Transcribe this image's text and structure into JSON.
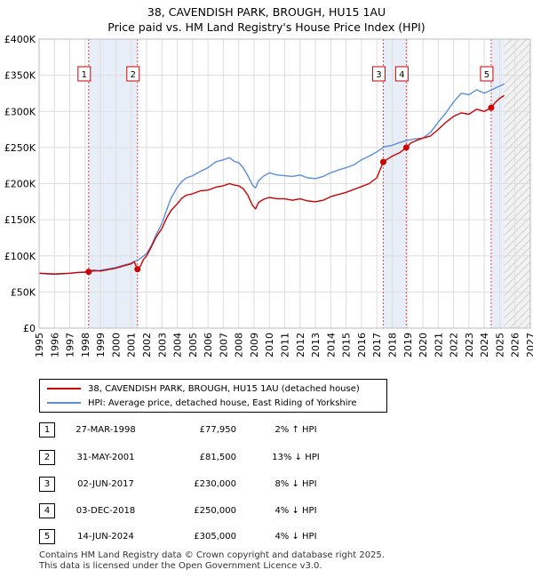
{
  "header": {
    "title_line1": "38, CAVENDISH PARK, BROUGH, HU15 1AU",
    "title_line2": "Price paid vs. HM Land Registry's House Price Index (HPI)"
  },
  "chart_data": {
    "type": "line",
    "xlim": [
      1995,
      2027
    ],
    "ylim": [
      0,
      400000
    ],
    "y_ticks": [
      0,
      50000,
      100000,
      150000,
      200000,
      250000,
      300000,
      350000,
      400000
    ],
    "y_tick_labels": [
      "£0",
      "£50K",
      "£100K",
      "£150K",
      "£200K",
      "£250K",
      "£300K",
      "£350K",
      "£400K"
    ],
    "x_ticks": [
      1995,
      1996,
      1997,
      1998,
      1999,
      2000,
      2001,
      2002,
      2003,
      2004,
      2005,
      2006,
      2007,
      2008,
      2009,
      2010,
      2011,
      2012,
      2013,
      2014,
      2015,
      2016,
      2017,
      2018,
      2019,
      2020,
      2021,
      2022,
      2023,
      2024,
      2025,
      2026,
      2027
    ],
    "x_tick_labels": [
      "1995",
      "1996",
      "1997",
      "1998",
      "1999",
      "2000",
      "2001",
      "2002",
      "2003",
      "2004",
      "2005",
      "2006",
      "2007",
      "2008",
      "2009",
      "2010",
      "2011",
      "2012",
      "2013",
      "2014",
      "2015",
      "2016",
      "2017",
      "2018",
      "2019",
      "2020",
      "2021",
      "2022",
      "2023",
      "2024",
      "2025",
      "2026",
      "2027"
    ],
    "grid": true,
    "forecast_start": 2025.3,
    "shaded_spans": [
      [
        1998.23,
        2001.41
      ],
      [
        2017.42,
        2018.92
      ],
      [
        2024.45,
        2025.3
      ]
    ],
    "series": [
      {
        "name": "38, CAVENDISH PARK, BROUGH, HU15 1AU (detached house)",
        "color": "#cc0000",
        "x": [
          1995.0,
          1995.5,
          1996.0,
          1996.5,
          1997.0,
          1997.5,
          1998.0,
          1998.23,
          1998.5,
          1999.0,
          1999.5,
          2000.0,
          2000.5,
          2001.0,
          2001.2,
          2001.41,
          2001.6,
          2001.8,
          2002.0,
          2002.3,
          2002.6,
          2003.0,
          2003.3,
          2003.6,
          2004.0,
          2004.3,
          2004.6,
          2005.0,
          2005.5,
          2006.0,
          2006.5,
          2007.0,
          2007.4,
          2007.7,
          2008.0,
          2008.3,
          2008.6,
          2008.9,
          2009.1,
          2009.3,
          2009.6,
          2010.0,
          2010.5,
          2011.0,
          2011.5,
          2012.0,
          2012.5,
          2013.0,
          2013.5,
          2014.0,
          2014.5,
          2015.0,
          2015.5,
          2016.0,
          2016.5,
          2017.0,
          2017.42,
          2017.7,
          2018.0,
          2018.5,
          2018.92,
          2019.2,
          2019.6,
          2020.0,
          2020.5,
          2021.0,
          2021.5,
          2022.0,
          2022.5,
          2023.0,
          2023.5,
          2024.0,
          2024.45,
          2024.7,
          2025.0,
          2025.3
        ],
        "values": [
          76000,
          75500,
          75000,
          75500,
          76000,
          77000,
          77500,
          77950,
          80000,
          79000,
          81000,
          83000,
          86000,
          89000,
          92000,
          81500,
          86000,
          95000,
          100000,
          112000,
          125000,
          138000,
          152000,
          163000,
          172000,
          180000,
          184000,
          186000,
          190000,
          191000,
          195000,
          197000,
          200000,
          198000,
          197000,
          193000,
          184000,
          170000,
          165000,
          174000,
          178000,
          181000,
          179000,
          179000,
          177000,
          179000,
          176000,
          175000,
          177000,
          182000,
          185000,
          188000,
          192000,
          196000,
          200000,
          208000,
          230000,
          234000,
          238000,
          243000,
          250000,
          256000,
          260000,
          263000,
          266000,
          275000,
          285000,
          293000,
          298000,
          296000,
          303000,
          300000,
          305000,
          312000,
          318000,
          322000
        ]
      },
      {
        "name": "HPI: Average price, detached house, East Riding of Yorkshire",
        "color": "#5b8fd4",
        "x": [
          1995.0,
          1995.5,
          1996.0,
          1996.5,
          1997.0,
          1997.5,
          1998.0,
          1998.5,
          1999.0,
          1999.5,
          2000.0,
          2000.5,
          2001.0,
          2001.5,
          2002.0,
          2002.3,
          2002.6,
          2003.0,
          2003.3,
          2003.6,
          2004.0,
          2004.3,
          2004.6,
          2005.0,
          2005.5,
          2006.0,
          2006.5,
          2007.0,
          2007.4,
          2007.7,
          2008.0,
          2008.3,
          2008.6,
          2008.9,
          2009.1,
          2009.3,
          2009.6,
          2010.0,
          2010.5,
          2011.0,
          2011.5,
          2012.0,
          2012.5,
          2013.0,
          2013.5,
          2014.0,
          2014.5,
          2015.0,
          2015.5,
          2016.0,
          2016.5,
          2017.0,
          2017.5,
          2018.0,
          2018.5,
          2019.0,
          2019.5,
          2020.0,
          2020.5,
          2021.0,
          2021.5,
          2022.0,
          2022.5,
          2023.0,
          2023.5,
          2024.0,
          2024.5,
          2025.0,
          2025.3
        ],
        "values": [
          76000,
          75000,
          74500,
          75000,
          76000,
          77000,
          77500,
          78500,
          80000,
          82000,
          84000,
          87000,
          90000,
          95000,
          103000,
          114000,
          128000,
          145000,
          163000,
          180000,
          195000,
          203000,
          208000,
          211000,
          217000,
          222000,
          230000,
          233000,
          236000,
          231000,
          229000,
          222000,
          211000,
          198000,
          194000,
          204000,
          210000,
          215000,
          212000,
          211000,
          210000,
          212000,
          208000,
          207000,
          210000,
          215000,
          219000,
          222000,
          226000,
          233000,
          238000,
          244000,
          251000,
          253000,
          257000,
          260000,
          262000,
          263000,
          271000,
          285000,
          298000,
          313000,
          325000,
          323000,
          330000,
          325000,
          330000,
          335000,
          338000
        ]
      }
    ],
    "sales": [
      {
        "label": "1",
        "x": 1998.23,
        "value": 77950
      },
      {
        "label": "2",
        "x": 2001.41,
        "value": 81500
      },
      {
        "label": "3",
        "x": 2017.42,
        "value": 230000
      },
      {
        "label": "4",
        "x": 2018.92,
        "value": 250000
      },
      {
        "label": "5",
        "x": 2024.45,
        "value": 305000
      }
    ]
  },
  "legend": {
    "property_label": "38, CAVENDISH PARK, BROUGH, HU15 1AU (detached house)",
    "hpi_label": "HPI: Average price, detached house, East Riding of Yorkshire",
    "property_color": "#cc0000",
    "hpi_color": "#5b8fd4"
  },
  "table": {
    "rows": [
      {
        "num": "1",
        "date": "27-MAR-1998",
        "price": "£77,950",
        "hpi": "2% ↑ HPI"
      },
      {
        "num": "2",
        "date": "31-MAY-2001",
        "price": "£81,500",
        "hpi": "13% ↓ HPI"
      },
      {
        "num": "3",
        "date": "02-JUN-2017",
        "price": "£230,000",
        "hpi": "8% ↓ HPI"
      },
      {
        "num": "4",
        "date": "03-DEC-2018",
        "price": "£250,000",
        "hpi": "4% ↓ HPI"
      },
      {
        "num": "5",
        "date": "14-JUN-2024",
        "price": "£305,000",
        "hpi": "4% ↓ HPI"
      }
    ]
  },
  "footer": {
    "line1": "Contains HM Land Registry data © Crown copyright and database right 2025.",
    "line2": "This data is licensed under the Open Government Licence v3.0."
  }
}
